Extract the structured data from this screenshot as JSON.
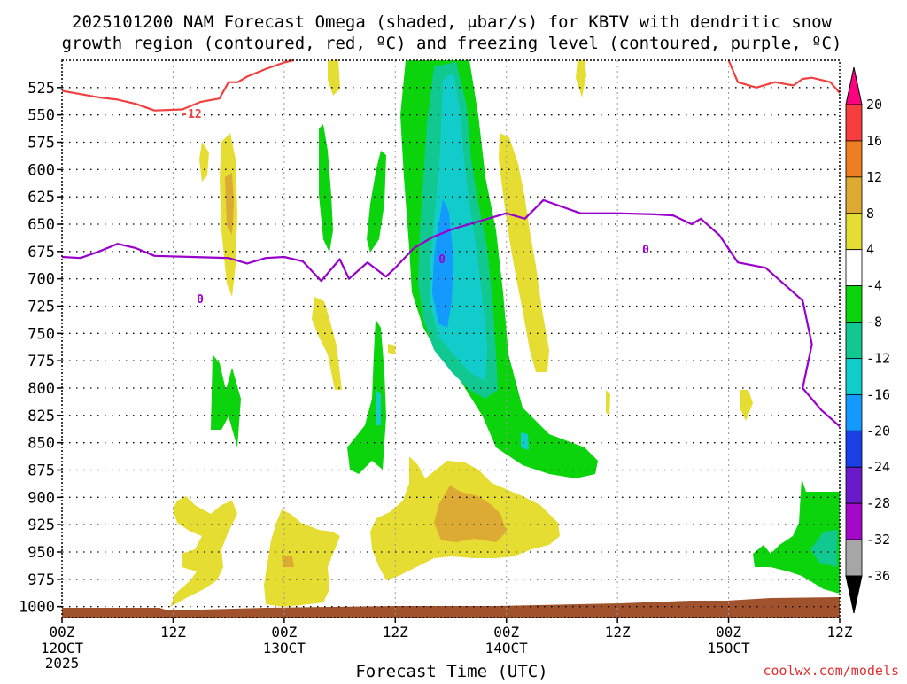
{
  "chart_data": {
    "type": "time-height contour plot",
    "title_line1": "2025101200 NAM Forecast Omega (shaded, μbar/s) for KBTV with dendritic snow",
    "title_line2": "growth region (contoured, red, ºC) and freezing level (contoured, purple, ºC)",
    "xlabel": "Forecast Time (UTC)",
    "ylabel": "",
    "credit": "coolwx.com/models",
    "x_range_hours": [
      0,
      84
    ],
    "y_range_hpa": [
      500,
      1010
    ],
    "x_ticks": [
      {
        "hour": 0,
        "top": "00Z",
        "mid": "12OCT",
        "bot": "2025"
      },
      {
        "hour": 12,
        "top": "12Z",
        "mid": "",
        "bot": ""
      },
      {
        "hour": 24,
        "top": "00Z",
        "mid": "13OCT",
        "bot": ""
      },
      {
        "hour": 36,
        "top": "12Z",
        "mid": "",
        "bot": ""
      },
      {
        "hour": 48,
        "top": "00Z",
        "mid": "14OCT",
        "bot": ""
      },
      {
        "hour": 60,
        "top": "12Z",
        "mid": "",
        "bot": ""
      },
      {
        "hour": 72,
        "top": "00Z",
        "mid": "15OCT",
        "bot": ""
      },
      {
        "hour": 84,
        "top": "12Z",
        "mid": "",
        "bot": ""
      }
    ],
    "y_ticks": [
      "525",
      "550",
      "575",
      "600",
      "625",
      "650",
      "675",
      "700",
      "725",
      "750",
      "775",
      "800",
      "825",
      "850",
      "875",
      "900",
      "925",
      "950",
      "975",
      "1000"
    ],
    "colorbar_labels": [
      "20",
      "16",
      "12",
      "8",
      "4",
      "-4",
      "-8",
      "-12",
      "-16",
      "-20",
      "-24",
      "-28",
      "-32",
      "-36"
    ],
    "colorbar_colors": [
      "#ff0080",
      "#f73e3e",
      "#ed7f22",
      "#ddaa33",
      "#e6dd33",
      "#ffffff",
      "#0cd40c",
      "#11c890",
      "#12cccc",
      "#1499ff",
      "#1a3fe6",
      "#6b1ac9",
      "#a20ac8",
      "#a6a6a6",
      "#000000"
    ],
    "contour_labels": {
      "red": "-12",
      "purple": "0"
    },
    "series": [
      {
        "name": "freezing-level-0C",
        "color": "#9900cc",
        "points": [
          [
            0,
            680
          ],
          [
            2,
            681
          ],
          [
            4,
            675
          ],
          [
            6,
            668
          ],
          [
            8,
            672
          ],
          [
            10,
            679
          ],
          [
            14,
            680
          ],
          [
            18,
            681
          ],
          [
            20,
            686
          ],
          [
            22,
            681
          ],
          [
            24,
            680
          ],
          [
            26,
            684
          ],
          [
            28,
            702
          ],
          [
            30,
            682
          ],
          [
            31,
            700
          ],
          [
            33,
            685
          ],
          [
            35,
            698
          ],
          [
            36,
            690
          ],
          [
            38,
            672
          ],
          [
            40,
            662
          ],
          [
            42,
            655
          ],
          [
            44,
            650
          ],
          [
            46,
            645
          ],
          [
            48,
            640
          ],
          [
            50,
            645
          ],
          [
            52,
            628
          ],
          [
            54,
            634
          ],
          [
            56,
            640
          ],
          [
            60,
            640
          ],
          [
            64,
            641
          ],
          [
            66,
            642
          ],
          [
            68,
            650
          ],
          [
            69,
            645
          ],
          [
            71,
            660
          ],
          [
            73,
            685
          ],
          [
            76,
            690
          ],
          [
            80,
            720
          ],
          [
            81,
            760
          ],
          [
            80,
            800
          ],
          [
            82,
            820
          ],
          [
            84,
            835
          ]
        ]
      },
      {
        "name": "dendritic-growth-minus12C",
        "color": "#f04040",
        "points": [
          [
            0,
            528
          ],
          [
            2,
            531
          ],
          [
            4,
            534
          ],
          [
            6,
            536
          ],
          [
            8,
            540
          ],
          [
            10,
            546
          ],
          [
            13,
            545
          ],
          [
            15,
            538
          ],
          [
            17,
            535
          ],
          [
            18,
            520
          ],
          [
            19,
            520
          ],
          [
            20,
            515
          ],
          [
            22,
            508
          ],
          [
            24,
            502
          ],
          [
            25,
            500
          ]
        ]
      },
      {
        "name": "dendritic-growth-minus12C-right",
        "color": "#f04040",
        "points": [
          [
            72,
            500
          ],
          [
            73,
            520
          ],
          [
            75,
            525
          ],
          [
            77,
            520
          ],
          [
            79,
            523
          ],
          [
            80,
            517
          ],
          [
            81,
            516
          ],
          [
            83,
            520
          ],
          [
            84,
            530
          ]
        ]
      }
    ],
    "omega_shading": [
      {
        "name": "green-main-band",
        "level": "-4 to -8",
        "color": "#0cd40c"
      },
      {
        "name": "teal-core",
        "level": "-8 to -12",
        "color": "#11c890"
      },
      {
        "name": "cyan-core",
        "level": "-12 to -16",
        "color": "#12cccc"
      },
      {
        "name": "blue-core",
        "level": "-16 to -20",
        "color": "#1499ff"
      },
      {
        "name": "yellow-rising",
        "level": "4 to 8",
        "color": "#e6dd33"
      },
      {
        "name": "orange-rising",
        "level": "8 to 12",
        "color": "#ddaa33"
      }
    ],
    "ground_color": "#a0522d"
  }
}
